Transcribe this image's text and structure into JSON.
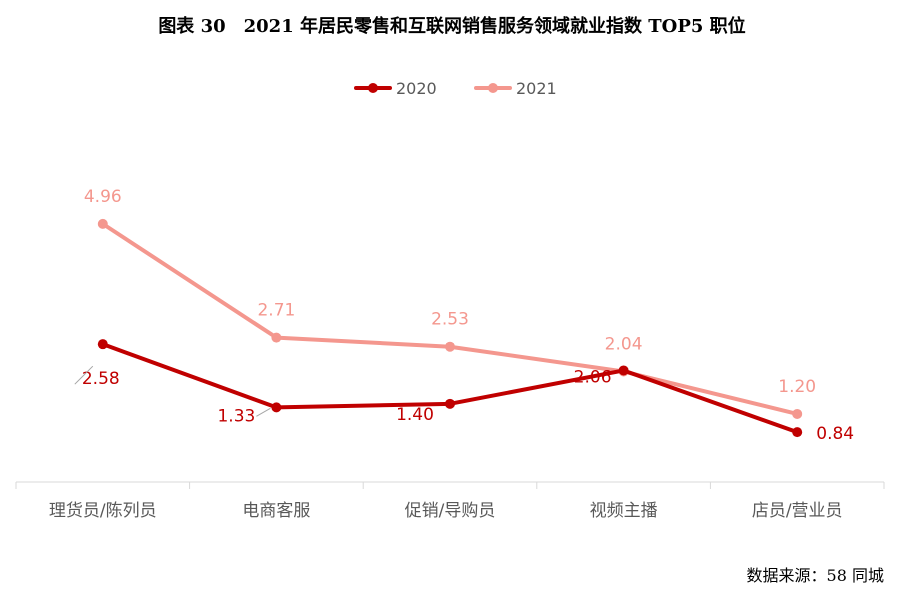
{
  "title": "图表 30　2021 年居民零售和互联网销售服务领域就业指数 TOP5 职位",
  "source": "数据来源：58 同城",
  "chart_data": {
    "type": "line",
    "categories": [
      "理货员/陈列员",
      "电商客服",
      "促销/导购员",
      "视频主播",
      "店员/营业员"
    ],
    "series": [
      {
        "name": "2020",
        "color": "#C00000",
        "values": [
          2.58,
          1.33,
          1.4,
          2.06,
          0.84
        ],
        "labels": [
          "2.58",
          "1.33",
          "1.40",
          "2.06",
          "0.84"
        ]
      },
      {
        "name": "2021",
        "color": "#F4978E",
        "values": [
          4.96,
          2.71,
          2.53,
          2.04,
          1.2
        ],
        "labels": [
          "4.96",
          "2.71",
          "2.53",
          "2.04",
          "1.20"
        ]
      }
    ],
    "xlabel": "",
    "ylabel": "",
    "grid": false,
    "legend": "top-center"
  }
}
